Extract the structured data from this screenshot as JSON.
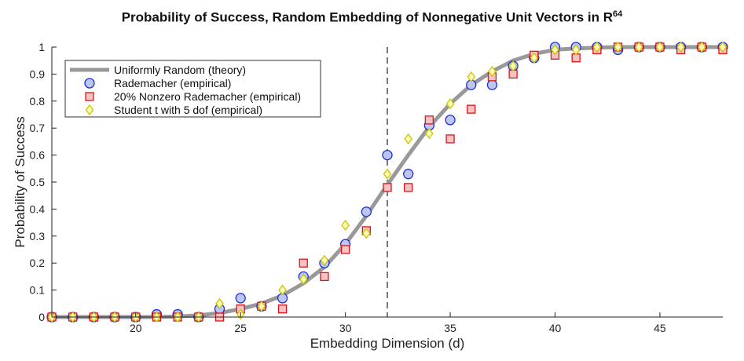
{
  "chart_data": {
    "type": "scatter",
    "title": "Probability of Success, Random Embedding of Nonnegative Unit Vectors in R",
    "title_superscript": "64",
    "xlabel": "Embedding Dimension (d)",
    "ylabel": "Probability of Success",
    "xlim": [
      16,
      48
    ],
    "ylim": [
      0,
      1
    ],
    "xticks": [
      20,
      25,
      30,
      35,
      40,
      45
    ],
    "yticks": [
      0,
      0.1,
      0.2,
      0.3,
      0.4,
      0.5,
      0.6,
      0.7,
      0.8,
      0.9,
      1
    ],
    "ytick_labels": [
      "0",
      "0.1",
      "0.2",
      "0.3",
      "0.4",
      "0.5",
      "0.6",
      "0.7",
      "0.8",
      "0.9",
      "1"
    ],
    "vline_x": 32,
    "legend_position": "top-left",
    "series": [
      {
        "name": "Uniformly Random (theory)",
        "kind": "line",
        "color": "#999999",
        "x": [
          16,
          17,
          18,
          19,
          20,
          21,
          22,
          23,
          24,
          25,
          26,
          27,
          28,
          29,
          30,
          31,
          32,
          33,
          34,
          35,
          36,
          37,
          38,
          39,
          40,
          41,
          42,
          43,
          44,
          45,
          46,
          47,
          48
        ],
        "y": [
          0,
          0,
          0,
          0,
          0,
          0,
          0.002,
          0.006,
          0.015,
          0.03,
          0.05,
          0.08,
          0.125,
          0.185,
          0.27,
          0.375,
          0.49,
          0.6,
          0.705,
          0.79,
          0.86,
          0.91,
          0.95,
          0.975,
          0.99,
          0.995,
          0.998,
          1,
          1,
          1,
          1,
          1,
          1
        ]
      },
      {
        "name": "Rademacher (empirical)",
        "kind": "circle",
        "fill": "#bcc6f0",
        "stroke": "#1d2fd6",
        "x": [
          16,
          17,
          18,
          19,
          20,
          21,
          22,
          23,
          24,
          25,
          26,
          27,
          28,
          29,
          30,
          31,
          32,
          33,
          34,
          35,
          36,
          37,
          38,
          39,
          40,
          41,
          42,
          43,
          44,
          45,
          46,
          47,
          48
        ],
        "y": [
          0,
          0,
          0,
          0,
          0,
          0.01,
          0.01,
          0,
          0.03,
          0.07,
          0.04,
          0.07,
          0.15,
          0.2,
          0.27,
          0.39,
          0.6,
          0.53,
          0.71,
          0.73,
          0.86,
          0.86,
          0.93,
          0.96,
          1,
          1,
          1,
          0.99,
          1,
          1,
          1,
          1,
          1
        ]
      },
      {
        "name": "20% Nonzero Rademacher (empirical)",
        "kind": "square",
        "fill": "#f4c4c4",
        "stroke": "#e0121a",
        "x": [
          16,
          17,
          18,
          19,
          20,
          21,
          22,
          23,
          24,
          25,
          26,
          27,
          28,
          29,
          30,
          31,
          32,
          33,
          34,
          35,
          36,
          37,
          38,
          39,
          40,
          41,
          42,
          43,
          44,
          45,
          46,
          47,
          48
        ],
        "y": [
          0,
          0,
          0,
          0,
          0,
          0,
          0,
          0,
          0,
          0.03,
          0.04,
          0.03,
          0.2,
          0.15,
          0.25,
          0.32,
          0.48,
          0.48,
          0.73,
          0.66,
          0.77,
          0.89,
          0.9,
          0.97,
          0.97,
          0.96,
          0.99,
          1,
          1,
          1,
          0.99,
          1,
          0.99
        ]
      },
      {
        "name": "Student t with 5 dof (empirical)",
        "kind": "diamond",
        "fill": "#fbf9b4",
        "stroke": "#c8c800",
        "x": [
          16,
          17,
          18,
          19,
          20,
          21,
          22,
          23,
          24,
          25,
          26,
          27,
          28,
          29,
          30,
          31,
          32,
          33,
          34,
          35,
          36,
          37,
          38,
          39,
          40,
          41,
          42,
          43,
          44,
          45,
          46,
          47,
          48
        ],
        "y": [
          0,
          0,
          0,
          0,
          0,
          0,
          0,
          0,
          0.05,
          0.01,
          0.04,
          0.1,
          0.14,
          0.21,
          0.34,
          0.31,
          0.53,
          0.66,
          0.68,
          0.79,
          0.89,
          0.91,
          0.93,
          0.96,
          0.99,
          0.99,
          1,
          1,
          1,
          1,
          1,
          1,
          1
        ]
      }
    ]
  }
}
